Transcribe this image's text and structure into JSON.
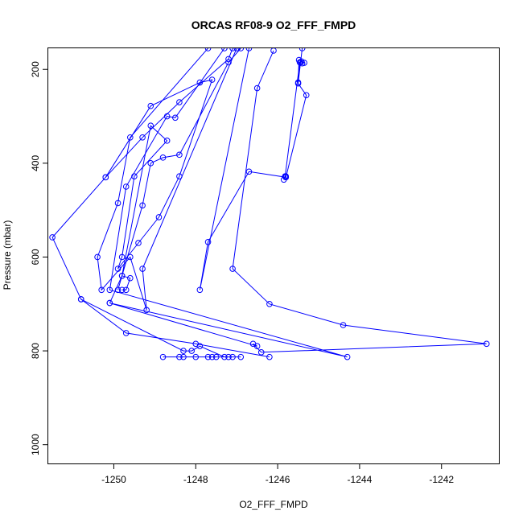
{
  "chart_data": {
    "type": "line",
    "title": "ORCAS RF08-9 O2_FFF_FMPD",
    "xlabel": "O2_FFF_FMPD",
    "ylabel": "Pressure (mbar)",
    "xlim": [
      -1251.6,
      -1240.6
    ],
    "ylim": [
      1040,
      155
    ],
    "y_reversed": true,
    "x_ticks": [
      -1250,
      -1248,
      -1246,
      -1244,
      -1242
    ],
    "y_ticks": [
      200,
      400,
      600,
      800,
      1000
    ],
    "color": "#0000ff",
    "series": [
      {
        "points": [
          [
            -1245.4,
            155
          ],
          [
            -1245.5,
            230
          ],
          [
            -1245.3,
            255
          ],
          [
            -1245.8,
            430
          ],
          [
            -1246.7,
            418
          ],
          [
            -1247.7,
            568
          ],
          [
            -1247.9,
            670
          ],
          [
            -1246.7,
            155
          ]
        ]
      },
      {
        "points": [
          [
            -1246.1,
            160
          ],
          [
            -1246.5,
            240
          ],
          [
            -1247.1,
            625
          ],
          [
            -1246.2,
            700
          ],
          [
            -1244.4,
            745
          ],
          [
            -1240.9,
            785
          ],
          [
            -1246.4,
            803
          ],
          [
            -1246.6,
            785
          ],
          [
            -1246.5,
            790
          ],
          [
            -1250.1,
            698
          ],
          [
            -1244.3,
            813
          ],
          [
            -1250.1,
            670
          ],
          [
            -1249.7,
            450
          ],
          [
            -1248.7,
            300
          ],
          [
            -1248.5,
            303
          ],
          [
            -1247.3,
            155
          ]
        ]
      },
      {
        "points": [
          [
            -1247.1,
            155
          ],
          [
            -1247.2,
            178
          ],
          [
            -1248.4,
            270
          ],
          [
            -1249.3,
            345
          ],
          [
            -1250.2,
            430
          ],
          [
            -1251.5,
            558
          ],
          [
            -1250.8,
            690
          ],
          [
            -1249.7,
            762
          ],
          [
            -1248.0,
            785
          ],
          [
            -1246.2,
            813
          ]
        ]
      },
      {
        "points": [
          [
            -1246.9,
            155
          ],
          [
            -1247.2,
            185
          ],
          [
            -1248.4,
            382
          ],
          [
            -1248.8,
            388
          ],
          [
            -1249.1,
            400
          ],
          [
            -1249.3,
            490
          ],
          [
            -1249.9,
            670
          ],
          [
            -1249.8,
            640
          ],
          [
            -1249.1,
            320
          ],
          [
            -1248.7,
            352
          ],
          [
            -1249.5,
            428
          ],
          [
            -1249.8,
            600
          ],
          [
            -1249.9,
            625
          ],
          [
            -1249.4,
            570
          ],
          [
            -1248.9,
            515
          ],
          [
            -1248.4,
            428
          ],
          [
            -1247.6,
            222
          ],
          [
            -1247.9,
            228
          ],
          [
            -1249.1,
            278
          ],
          [
            -1250.2,
            430
          ]
        ]
      },
      {
        "points": [
          [
            -1247.0,
            155
          ],
          [
            -1249.3,
            625
          ],
          [
            -1249.2,
            713
          ],
          [
            -1249.6,
            600
          ],
          [
            -1250.3,
            670
          ],
          [
            -1250.4,
            600
          ],
          [
            -1249.9,
            485
          ],
          [
            -1249.6,
            345
          ],
          [
            -1247.7,
            155
          ]
        ]
      },
      {
        "points": [
          [
            -1250.1,
            698
          ],
          [
            -1249.8,
            640
          ],
          [
            -1249.6,
            645
          ],
          [
            -1249.7,
            670
          ],
          [
            -1249.8,
            670
          ]
        ]
      },
      {
        "points": [
          [
            -1250.8,
            690
          ],
          [
            -1248.3,
            800
          ],
          [
            -1248.1,
            800
          ],
          [
            -1247.9,
            790
          ],
          [
            -1247.3,
            813
          ],
          [
            -1247.1,
            813
          ],
          [
            -1246.9,
            813
          ],
          [
            -1248.8,
            813
          ],
          [
            -1248.4,
            813
          ],
          [
            -1248.3,
            813
          ],
          [
            -1248.0,
            813
          ],
          [
            -1247.7,
            813
          ],
          [
            -1247.6,
            813
          ],
          [
            -1247.5,
            813
          ],
          [
            -1247.2,
            813
          ]
        ]
      },
      {
        "points": [
          [
            -1245.45,
            185
          ],
          [
            -1245.42,
            183
          ],
          [
            -1245.4,
            187
          ],
          [
            -1245.35,
            186
          ],
          [
            -1245.48,
            180
          ],
          [
            -1245.5,
            228
          ],
          [
            -1245.46,
            185
          ],
          [
            -1245.82,
            428
          ],
          [
            -1245.85,
            435
          ],
          [
            -1245.8,
            428
          ]
        ]
      }
    ]
  }
}
